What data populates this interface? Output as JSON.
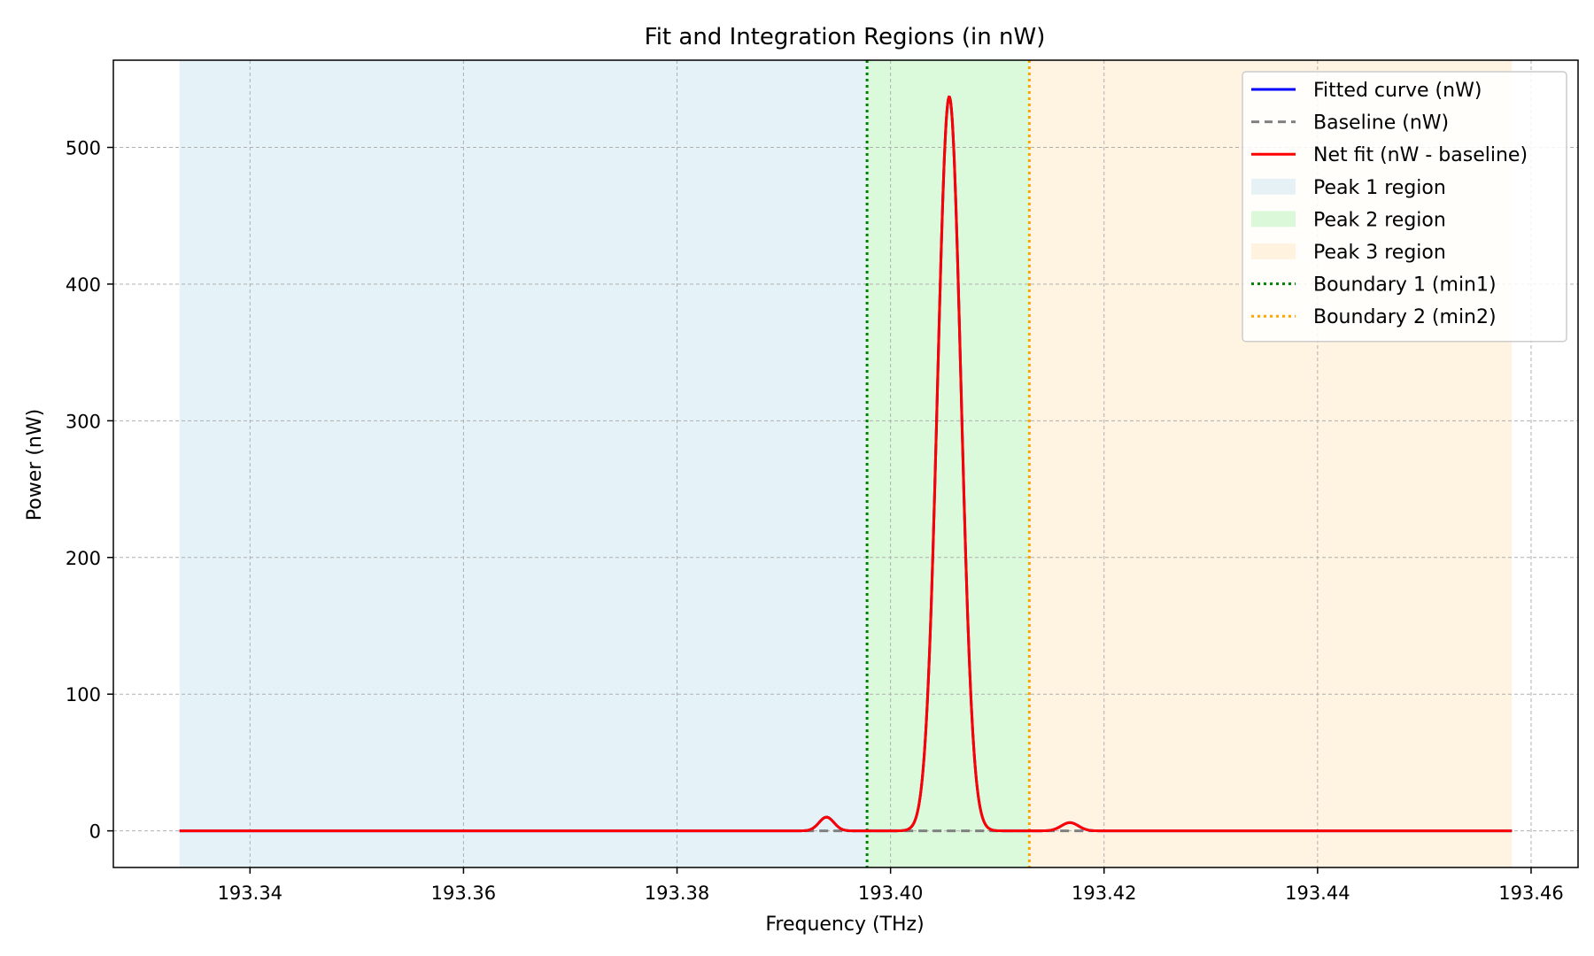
{
  "chart_data": {
    "type": "line",
    "title": "Fit and Integration Regions (in nW)",
    "xlabel": "Frequency (THz)",
    "ylabel": "Power (nW)",
    "xlim": [
      193.3272,
      193.4644
    ],
    "ylim": [
      -26.8,
      563.8
    ],
    "xticks": [
      193.34,
      193.36,
      193.38,
      193.4,
      193.42,
      193.44,
      193.46
    ],
    "xtick_labels": [
      "193.34",
      "193.36",
      "193.38",
      "193.40",
      "193.42",
      "193.44",
      "193.46"
    ],
    "yticks": [
      0,
      100,
      200,
      300,
      400,
      500
    ],
    "ytick_labels": [
      "0",
      "100",
      "200",
      "300",
      "400",
      "500"
    ],
    "grid": true,
    "legend_position": "top-right",
    "x_range": [
      193.3334,
      193.4582
    ],
    "peaks": [
      {
        "center": 193.394,
        "amplitude": 10,
        "width": 0.0007
      },
      {
        "center": 193.4055,
        "amplitude": 537,
        "width": 0.0011
      },
      {
        "center": 193.4168,
        "amplitude": 6,
        "width": 0.0008
      }
    ],
    "baseline": {
      "value": 0,
      "x_range": [
        193.392,
        193.419
      ]
    },
    "regions": [
      {
        "name": "Peak 1 region",
        "x_start": 193.3334,
        "x_end": 193.3978,
        "color": "#add8e6",
        "opacity": 0.32
      },
      {
        "name": "Peak 2 region",
        "x_start": 193.3978,
        "x_end": 193.413,
        "color": "#90ee90",
        "opacity": 0.32
      },
      {
        "name": "Peak 3 region",
        "x_start": 193.413,
        "x_end": 193.4582,
        "color": "#ffdead",
        "opacity": 0.35
      }
    ],
    "boundaries": [
      {
        "name": "Boundary 1 (min1)",
        "x": 193.3978,
        "color": "#008000"
      },
      {
        "name": "Boundary 2 (min2)",
        "x": 193.413,
        "color": "#ffa500"
      }
    ],
    "series": [
      {
        "name": "Fitted curve (nW)",
        "color": "#0000ff",
        "style": "solid"
      },
      {
        "name": "Baseline (nW)",
        "color": "#808080",
        "style": "dashed"
      },
      {
        "name": "Net fit (nW - baseline)",
        "color": "#ff0000",
        "style": "solid"
      }
    ]
  }
}
